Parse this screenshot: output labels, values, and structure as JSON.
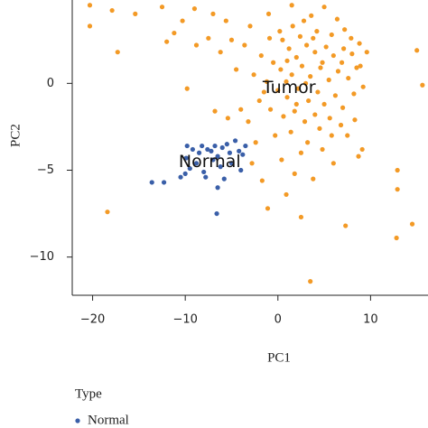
{
  "chart_data": {
    "type": "scatter",
    "x_label": "PC1",
    "y_label": "PC2",
    "legend_title": "Type",
    "xlim": [
      -22.2,
      16.2
    ],
    "ylim": [
      -12.2,
      4.8
    ],
    "xticks": [
      {
        "value": -20,
        "label": "−20"
      },
      {
        "value": -10,
        "label": "−10"
      },
      0,
      10
    ],
    "yticks": [
      {
        "value": -10,
        "label": "−10"
      },
      {
        "value": -5,
        "label": "−5"
      },
      0
    ],
    "series": [
      {
        "name": "Normal",
        "color": "#3a5fa8",
        "x": [
          -13.6,
          -12.3,
          -10.5,
          -10.0,
          -9.5,
          -9.8,
          -9.2,
          -8.5,
          -8.2,
          -7.6,
          -7.2,
          -6.8,
          -6.5,
          -6.0,
          -5.5,
          -5.2,
          -4.6,
          -4.2,
          -5.0,
          -6.2,
          -7.0,
          -8.8,
          -9.9,
          -7.8,
          -6.5,
          -6.6,
          -5.8,
          -3.8,
          -4.0,
          -8.0,
          -3.5
        ],
        "values": [
          -5.7,
          -5.7,
          -5.4,
          -5.2,
          -4.9,
          -3.6,
          -3.8,
          -4.0,
          -3.6,
          -3.8,
          -3.9,
          -3.6,
          -4.2,
          -3.7,
          -3.5,
          -4.0,
          -3.3,
          -3.9,
          -4.6,
          -4.8,
          -4.4,
          -4.6,
          -4.3,
          -5.4,
          -6.0,
          -7.5,
          -5.5,
          -4.1,
          -5.0,
          -5.1,
          -3.6
        ]
      },
      {
        "name": "Tumor",
        "color": "#f39a26",
        "x": [
          0.5,
          1.2,
          2.0,
          3.1,
          4.0,
          5.2,
          6.0,
          7.1,
          8.0,
          8.8,
          -0.5,
          0.3,
          1.5,
          2.6,
          3.5,
          4.6,
          5.5,
          6.5,
          7.6,
          8.5,
          -1.2,
          0.0,
          1.0,
          2.2,
          3.3,
          4.3,
          5.0,
          6.2,
          7.0,
          8.2,
          -0.8,
          0.6,
          1.8,
          2.9,
          4.0,
          5.6,
          6.8,
          -2.0,
          -2.6,
          -1.8,
          0.2,
          1.6,
          2.8,
          4.2,
          5.8,
          7.2,
          3.6,
          5.0,
          6.4,
          -0.9,
          1.0,
          2.4,
          3.8,
          4.8,
          6.9,
          7.9,
          8.9,
          9.2,
          -1.5,
          0.9,
          2.0,
          3.0,
          4.5,
          5.8,
          3.2,
          1.4,
          -0.3,
          2.5,
          4.8,
          0.4,
          -3.2,
          -2.4,
          -4.5,
          -3.6,
          -5.0,
          -6.2,
          -7.5,
          -8.8,
          -10.3,
          -11.2,
          -9.0,
          -7.0,
          -5.6,
          -3.0,
          -1.0,
          1.5,
          -4.0,
          -6.8,
          8.3,
          9.6,
          7.5,
          6.0,
          3.8,
          1.8,
          8.7,
          -20.3,
          -17.9,
          -15.4,
          -12.5,
          -20.3,
          -17.3,
          -12.0,
          -18.4,
          -9.8,
          -5.4,
          12.9,
          12.9,
          14.5,
          12.8,
          7.3,
          3.5,
          9.1,
          15.6,
          15.0,
          -1.7,
          0.9,
          2.5,
          -1.1,
          -2.8
        ],
        "values": [
          2.5,
          2.0,
          1.5,
          2.2,
          1.8,
          2.1,
          1.6,
          2.0,
          1.7,
          2.3,
          1.2,
          0.8,
          0.5,
          1.0,
          0.4,
          0.9,
          0.2,
          0.7,
          0.3,
          0.9,
          0.1,
          -0.4,
          -0.8,
          -0.3,
          -1.0,
          -0.5,
          -1.2,
          -0.7,
          -1.4,
          -0.6,
          -1.5,
          -1.9,
          -1.6,
          -2.2,
          -1.8,
          -2.0,
          -2.4,
          -1.0,
          0.5,
          1.6,
          3.0,
          3.3,
          3.6,
          3.0,
          2.8,
          3.1,
          3.9,
          4.4,
          3.7,
          2.6,
          1.3,
          2.7,
          2.6,
          1.2,
          1.2,
          2.6,
          1.0,
          -0.2,
          -0.5,
          0.1,
          -1.2,
          0.0,
          -2.6,
          -3.0,
          -3.4,
          -2.8,
          -3.0,
          -4.0,
          -3.8,
          -4.4,
          -2.2,
          -3.4,
          0.8,
          2.2,
          2.5,
          1.8,
          2.6,
          2.2,
          3.6,
          2.9,
          4.3,
          4.0,
          3.6,
          3.3,
          4.0,
          4.5,
          -1.5,
          -1.6,
          -2.1,
          1.8,
          -3.0,
          -4.6,
          -5.5,
          -5.2,
          -4.2,
          4.5,
          4.2,
          4.0,
          4.4,
          3.3,
          1.8,
          2.4,
          -7.4,
          -0.3,
          -2.0,
          -5.0,
          -6.1,
          -8.1,
          -8.9,
          -8.2,
          -11.4,
          -3.8,
          -0.1,
          1.9,
          -5.6,
          -6.4,
          -7.7,
          -7.2,
          -4.6
        ]
      }
    ]
  }
}
